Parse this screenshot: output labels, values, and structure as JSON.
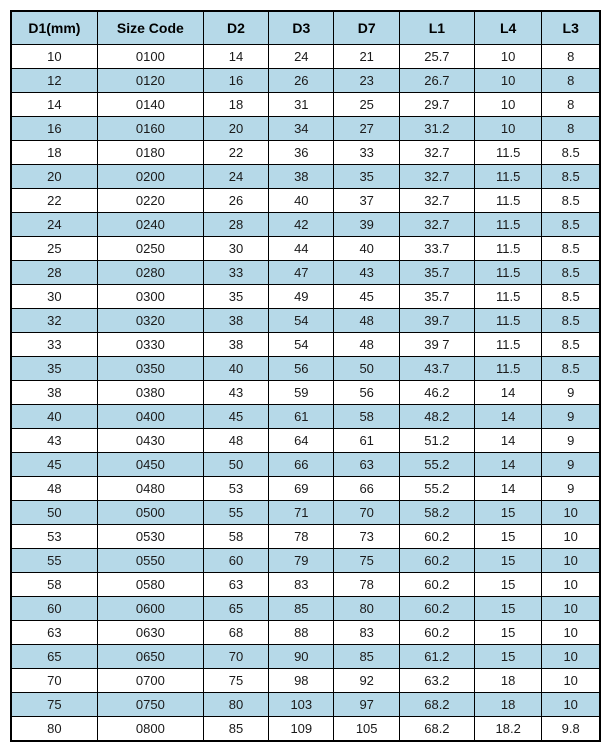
{
  "table": {
    "columns": [
      "D1(mm)",
      "Size  Code",
      "D2",
      "D3",
      "D7",
      "L1",
      "L4",
      "L3"
    ],
    "col_classes": [
      "col-d1",
      "col-size",
      "col-d2",
      "col-d3",
      "col-d7",
      "col-l1",
      "col-l4",
      "col-l3"
    ],
    "header_bg": "#b6d9e8",
    "row_alt_bg": "#b6d9e8",
    "row_bg": "#ffffff",
    "border_color": "#000000",
    "rows": [
      [
        "10",
        "0100",
        "14",
        "24",
        "21",
        "25.7",
        "10",
        "8"
      ],
      [
        "12",
        "0120",
        "16",
        "26",
        "23",
        "26.7",
        "10",
        "8"
      ],
      [
        "14",
        "0140",
        "18",
        "31",
        "25",
        "29.7",
        "10",
        "8"
      ],
      [
        "16",
        "0160",
        "20",
        "34",
        "27",
        "31.2",
        "10",
        "8"
      ],
      [
        "18",
        "0180",
        "22",
        "36",
        "33",
        "32.7",
        "11.5",
        "8.5"
      ],
      [
        "20",
        "0200",
        "24",
        "38",
        "35",
        "32.7",
        "11.5",
        "8.5"
      ],
      [
        "22",
        "0220",
        "26",
        "40",
        "37",
        "32.7",
        "11.5",
        "8.5"
      ],
      [
        "24",
        "0240",
        "28",
        "42",
        "39",
        "32.7",
        "11.5",
        "8.5"
      ],
      [
        "25",
        "0250",
        "30",
        "44",
        "40",
        "33.7",
        "11.5",
        "8.5"
      ],
      [
        "28",
        "0280",
        "33",
        "47",
        "43",
        "35.7",
        "11.5",
        "8.5"
      ],
      [
        "30",
        "0300",
        "35",
        "49",
        "45",
        "35.7",
        "11.5",
        "8.5"
      ],
      [
        "32",
        "0320",
        "38",
        "54",
        "48",
        "39.7",
        "11.5",
        "8.5"
      ],
      [
        "33",
        "0330",
        "38",
        "54",
        "48",
        "39 7",
        "11.5",
        "8.5"
      ],
      [
        "35",
        "0350",
        "40",
        "56",
        "50",
        "43.7",
        "11.5",
        "8.5"
      ],
      [
        "38",
        "0380",
        "43",
        "59",
        "56",
        "46.2",
        "14",
        "9"
      ],
      [
        "40",
        "0400",
        "45",
        "61",
        "58",
        "48.2",
        "14",
        "9"
      ],
      [
        "43",
        "0430",
        "48",
        "64",
        "61",
        "51.2",
        "14",
        "9"
      ],
      [
        "45",
        "0450",
        "50",
        "66",
        "63",
        "55.2",
        "14",
        "9"
      ],
      [
        "48",
        "0480",
        "53",
        "69",
        "66",
        "55.2",
        "14",
        "9"
      ],
      [
        "50",
        "0500",
        "55",
        "71",
        "70",
        "58.2",
        "15",
        "10"
      ],
      [
        "53",
        "0530",
        "58",
        "78",
        "73",
        "60.2",
        "15",
        "10"
      ],
      [
        "55",
        "0550",
        "60",
        "79",
        "75",
        "60.2",
        "15",
        "10"
      ],
      [
        "58",
        "0580",
        "63",
        "83",
        "78",
        "60.2",
        "15",
        "10"
      ],
      [
        "60",
        "0600",
        "65",
        "85",
        "80",
        "60.2",
        "15",
        "10"
      ],
      [
        "63",
        "0630",
        "68",
        "88",
        "83",
        "60.2",
        "15",
        "10"
      ],
      [
        "65",
        "0650",
        "70",
        "90",
        "85",
        "61.2",
        "15",
        "10"
      ],
      [
        "70",
        "0700",
        "75",
        "98",
        "92",
        "63.2",
        "18",
        "10"
      ],
      [
        "75",
        "0750",
        "80",
        "103",
        "97",
        "68.2",
        "18",
        "10"
      ],
      [
        "80",
        "0800",
        "85",
        "109",
        "105",
        "68.2",
        "18.2",
        "9.8"
      ]
    ]
  }
}
